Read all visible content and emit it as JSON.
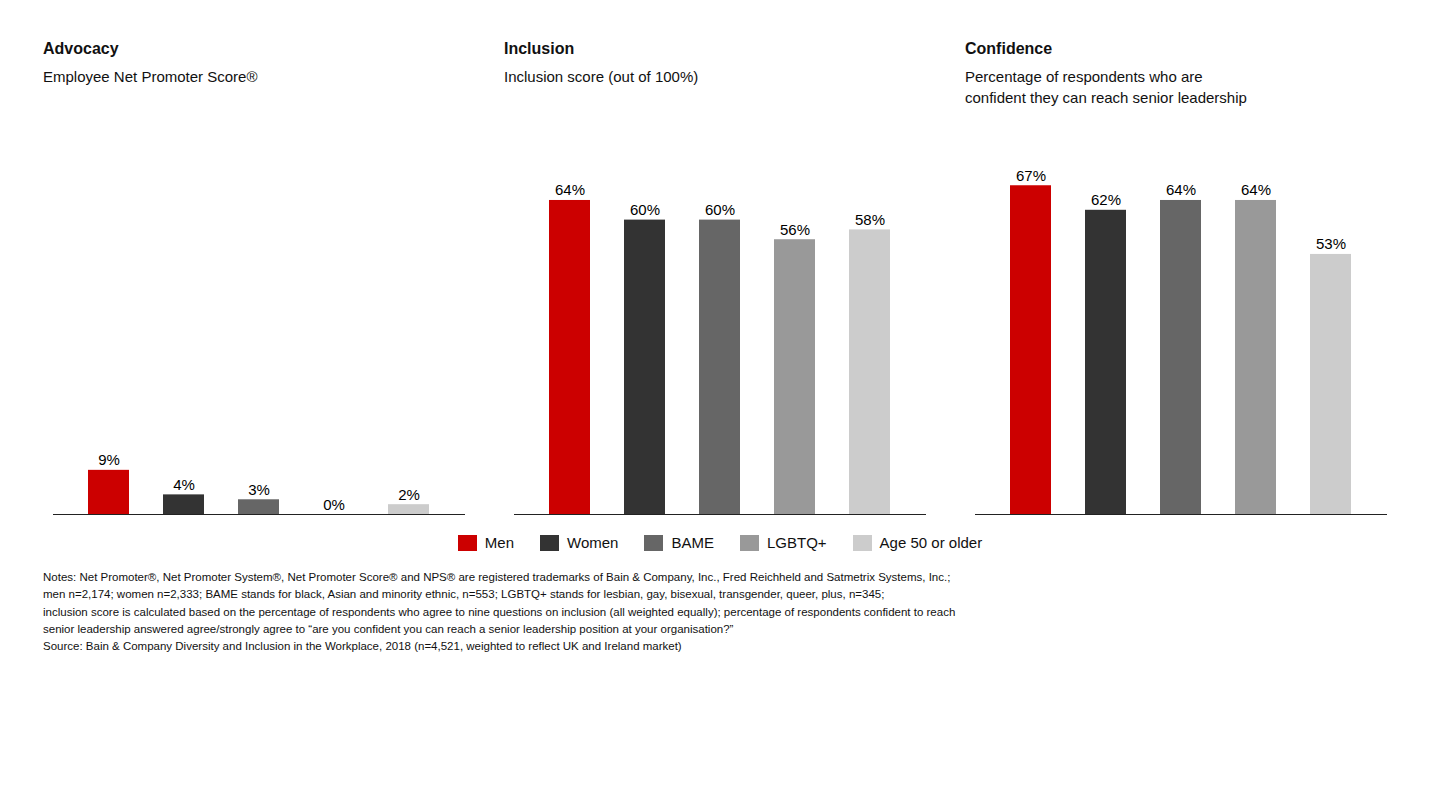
{
  "chart_data": [
    {
      "type": "bar",
      "title": "Advocacy",
      "subtitle": "Employee Net Promoter Score®",
      "categories": [
        "Men",
        "Women",
        "BAME",
        "LGBTQ+",
        "Age 50 or older"
      ],
      "values": [
        9,
        4,
        3,
        0,
        2
      ],
      "value_labels": [
        "9%",
        "4%",
        "3%",
        "0%",
        "2%"
      ],
      "colors": [
        "#cc0000",
        "#333333",
        "#666666",
        "#999999",
        "#cccccc"
      ],
      "ylim": [
        0,
        75
      ],
      "grid": false,
      "data_labels": true,
      "tick_labels": false,
      "legend": "bottom"
    },
    {
      "type": "bar",
      "title": "Inclusion",
      "subtitle": "Inclusion score (out of 100%)",
      "categories": [
        "Men",
        "Women",
        "BAME",
        "LGBTQ+",
        "Age 50 or older"
      ],
      "values": [
        64,
        60,
        60,
        56,
        58
      ],
      "value_labels": [
        "64%",
        "60%",
        "60%",
        "56%",
        "58%"
      ],
      "colors": [
        "#cc0000",
        "#333333",
        "#666666",
        "#999999",
        "#cccccc"
      ],
      "ylim": [
        0,
        75
      ],
      "grid": false,
      "data_labels": true,
      "tick_labels": false
    },
    {
      "type": "bar",
      "title": "Confidence",
      "subtitle": "Percentage of respondents who are\nconfident they can reach senior leadership",
      "categories": [
        "Men",
        "Women",
        "BAME",
        "LGBTQ+",
        "Age 50 or older"
      ],
      "values": [
        67,
        62,
        64,
        64,
        53
      ],
      "value_labels": [
        "67%",
        "62%",
        "64%",
        "64%",
        "53%"
      ],
      "colors": [
        "#cc0000",
        "#333333",
        "#666666",
        "#999999",
        "#cccccc"
      ],
      "ylim": [
        0,
        75
      ],
      "grid": false,
      "data_labels": true,
      "tick_labels": false
    }
  ],
  "notes": "Notes: Net Promoter®, Net Promoter System®, Net Promoter Score® and NPS® are registered trademarks of Bain & Company, Inc., Fred Reichheld and Satmetrix Systems, Inc.;\nmen n=2,174; women n=2,333; BAME stands for black, Asian and minority ethnic, n=553; LGBTQ+ stands for lesbian, gay, bisexual, transgender, queer, plus, n=345;\ninclusion score is calculated based on the percentage of respondents who agree to nine questions on inclusion (all weighted equally); percentage of respondents confident to reach\nsenior leadership answered agree/strongly agree to “are you confident you can reach a senior leadership position at your organisation?”\nSource: Bain & Company Diversity and Inclusion in the Workplace, 2018 (n=4,521, weighted to reflect UK and Ireland market)"
}
